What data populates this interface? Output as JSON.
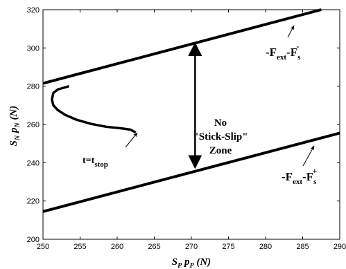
{
  "chart_data": {
    "type": "line",
    "xlabel": "S_P p_P (N)",
    "ylabel": "S_N p_N (N)",
    "xlim": [
      250,
      290
    ],
    "ylim": [
      200,
      320
    ],
    "x_ticks": [
      "250",
      "255",
      "260",
      "265",
      "270",
      "275",
      "280",
      "285",
      "290"
    ],
    "y_ticks": [
      "200",
      "220",
      "240",
      "260",
      "280",
      "300",
      "320"
    ],
    "grid": false,
    "series": [
      {
        "role": "upper-boundary",
        "x": [
          250,
          287.5
        ],
        "y": [
          281.5,
          320
        ]
      },
      {
        "role": "lower-boundary",
        "x": [
          250,
          290
        ],
        "y": [
          214.5,
          255.5
        ]
      },
      {
        "role": "trajectory",
        "x": [
          253.5,
          252.8,
          252.0,
          251.4,
          251.2,
          251.4,
          252.0,
          253.0,
          254.5,
          256.5,
          258.5,
          260.5,
          261.8,
          262.5
        ],
        "y": [
          280.0,
          279.2,
          278.3,
          276.5,
          273.0,
          270.0,
          267.5,
          265.0,
          262.5,
          260.3,
          258.8,
          258.0,
          257.3,
          255.8
        ]
      }
    ],
    "annotations": {
      "upper_label": {
        "main": "-F",
        "sub1": "ext",
        "mid": "-F",
        "sub2": "s",
        "sup2": "-"
      },
      "lower_label": {
        "main": "-F",
        "sub1": "ext",
        "mid": "-F",
        "sub2": "s",
        "sup2": "+"
      },
      "zone_label": [
        "No",
        "\"Stick-Slip\"",
        "Zone"
      ],
      "stop_label": {
        "main": "t=t",
        "sub": "stop"
      },
      "zone_arrow": {
        "x": 270.5,
        "y_top": 302.3,
        "y_bottom": 237.5
      }
    }
  },
  "axis_title_x": {
    "main": "S",
    "sub1": "P",
    "mid": " p",
    "sub2": "P",
    "tail": " (N)"
  },
  "axis_title_y": {
    "main": "S",
    "sub1": "N",
    "mid": " p",
    "sub2": "N",
    "tail": " (N)"
  }
}
